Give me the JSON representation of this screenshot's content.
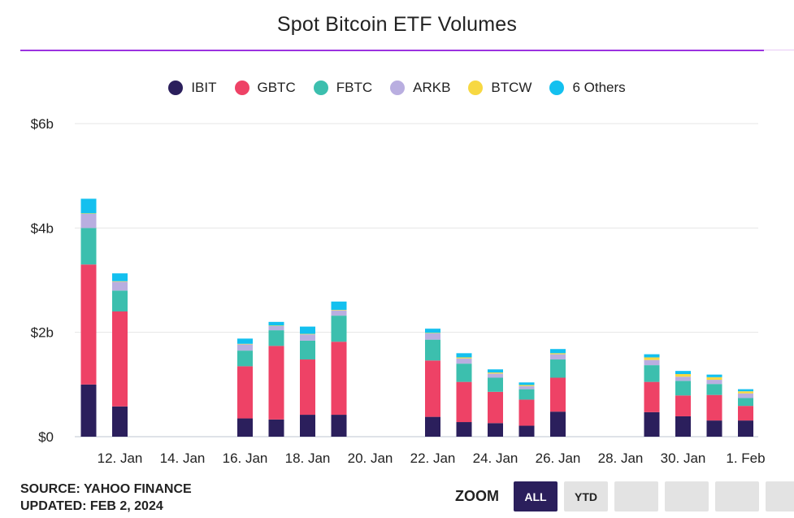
{
  "title": "Spot Bitcoin ETF Volumes",
  "colors": {
    "IBIT": "#2b1f5c",
    "GBTC": "#ee4266",
    "FBTC": "#3cbfae",
    "ARKB": "#b9aee0",
    "BTCW": "#f7d842",
    "6 Others": "#13c0ef",
    "title_rule": "#9b33e0"
  },
  "footer": {
    "source": "SOURCE: YAHOO FINANCE",
    "updated": "UPDATED: FEB 2, 2024"
  },
  "zoom": {
    "label": "ZOOM",
    "buttons": [
      "ALL",
      "YTD",
      "",
      "",
      "",
      ""
    ],
    "active": "ALL"
  },
  "chart_data": {
    "type": "bar",
    "stacked": true,
    "title": "Spot Bitcoin ETF Volumes",
    "y_unit": "$ billions",
    "ylim": [
      0,
      6
    ],
    "y_ticks": [
      0,
      2,
      4,
      6
    ],
    "y_tick_labels": [
      "$0",
      "$2b",
      "$4b",
      "$6b"
    ],
    "x_tick_labels": [
      "12. Jan",
      "14. Jan",
      "16. Jan",
      "18. Jan",
      "20. Jan",
      "22. Jan",
      "24. Jan",
      "26. Jan",
      "28. Jan",
      "30. Jan",
      "1. Feb"
    ],
    "x_tick_dates": [
      "2024-01-12",
      "2024-01-14",
      "2024-01-16",
      "2024-01-18",
      "2024-01-20",
      "2024-01-22",
      "2024-01-24",
      "2024-01-26",
      "2024-01-28",
      "2024-01-30",
      "2024-02-01"
    ],
    "x_range": [
      "2024-01-11",
      "2024-02-01"
    ],
    "legend_position": "top-center",
    "grid": true,
    "categories": [
      "2024-01-11",
      "2024-01-12",
      "2024-01-16",
      "2024-01-17",
      "2024-01-18",
      "2024-01-19",
      "2024-01-22",
      "2024-01-23",
      "2024-01-24",
      "2024-01-25",
      "2024-01-26",
      "2024-01-29",
      "2024-01-30",
      "2024-01-31",
      "2024-02-01"
    ],
    "series": [
      {
        "name": "IBIT",
        "values": [
          1.0,
          0.58,
          0.35,
          0.33,
          0.42,
          0.42,
          0.38,
          0.28,
          0.26,
          0.21,
          0.48,
          0.47,
          0.39,
          0.31,
          0.31
        ]
      },
      {
        "name": "GBTC",
        "values": [
          2.3,
          1.82,
          1.0,
          1.41,
          1.06,
          1.4,
          1.08,
          0.77,
          0.6,
          0.5,
          0.65,
          0.58,
          0.4,
          0.49,
          0.28
        ]
      },
      {
        "name": "FBTC",
        "values": [
          0.7,
          0.4,
          0.3,
          0.3,
          0.36,
          0.5,
          0.4,
          0.35,
          0.27,
          0.2,
          0.35,
          0.32,
          0.28,
          0.21,
          0.15
        ]
      },
      {
        "name": "ARKB",
        "values": [
          0.27,
          0.17,
          0.12,
          0.08,
          0.12,
          0.1,
          0.12,
          0.1,
          0.08,
          0.06,
          0.1,
          0.1,
          0.08,
          0.08,
          0.09
        ]
      },
      {
        "name": "BTCW",
        "values": [
          0.01,
          0.01,
          0.01,
          0.01,
          0.01,
          0.01,
          0.01,
          0.02,
          0.02,
          0.02,
          0.02,
          0.05,
          0.05,
          0.05,
          0.04
        ]
      },
      {
        "name": "6 Others",
        "values": [
          0.28,
          0.15,
          0.1,
          0.07,
          0.14,
          0.16,
          0.08,
          0.08,
          0.06,
          0.05,
          0.08,
          0.06,
          0.06,
          0.05,
          0.04
        ]
      }
    ]
  }
}
